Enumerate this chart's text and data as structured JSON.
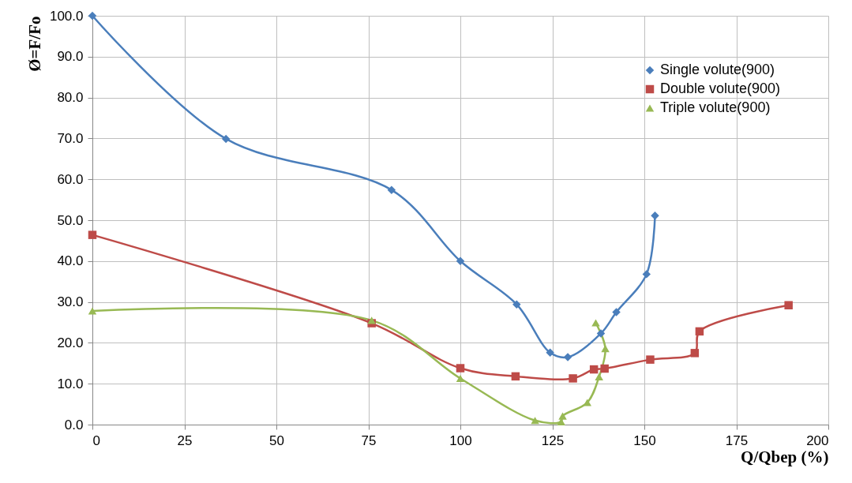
{
  "chart_data": {
    "type": "line",
    "xlabel": "Q/Qbep (%)",
    "ylabel": "Ø=F/Fo",
    "xlim": [
      0,
      200
    ],
    "xticks": [
      0,
      25,
      50,
      75,
      100,
      125,
      150,
      175,
      200
    ],
    "ylim": [
      0,
      100
    ],
    "yticks": [
      {
        "value": 0,
        "label": "0.0"
      },
      {
        "value": 10,
        "label": "10.0"
      },
      {
        "value": 20,
        "label": "20.0"
      },
      {
        "value": 30,
        "label": "30.0"
      },
      {
        "value": 40,
        "label": "40.0"
      },
      {
        "value": 50,
        "label": "50.0"
      },
      {
        "value": 60,
        "label": "60.0"
      },
      {
        "value": 70,
        "label": "70.0"
      },
      {
        "value": 80,
        "label": "80.0"
      },
      {
        "value": 90,
        "label": "90.0"
      },
      {
        "value": 100,
        "label": "100.0"
      }
    ],
    "grid": true,
    "legend": "top right",
    "line_style": "solid",
    "series": [
      {
        "name": "Single volute(900)",
        "color": "#4a7ebb",
        "marker": "diamond",
        "x": [
          0,
          36.3,
          81.3,
          100,
          115.3,
          124.4,
          129.2,
          138.2,
          142.4,
          150.6,
          152.9
        ],
        "values": [
          100,
          69.9,
          57.4,
          40,
          29.4,
          17.6,
          16.5,
          22.3,
          27.5,
          36.8,
          51.1
        ]
      },
      {
        "name": "Double volute(900)",
        "color": "#be4b48",
        "marker": "square",
        "x": [
          0,
          75.9,
          100,
          115,
          130.6,
          136.3,
          139.2,
          151.6,
          163.7,
          165,
          189.2
        ],
        "values": [
          46.4,
          24.8,
          13.8,
          11.8,
          11.3,
          13.5,
          13.7,
          15.9,
          17.5,
          22.8,
          29.2
        ]
      },
      {
        "name": "Triple volute(900)",
        "color": "#98b954",
        "marker": "triangle",
        "x": [
          0,
          75.9,
          100,
          120.3,
          127.4,
          127.8,
          134.5,
          137.7,
          139.4,
          136.8
        ],
        "values": [
          27.8,
          25.5,
          11.3,
          1.0,
          0.7,
          2.1,
          5.4,
          11.7,
          18.6,
          24.9
        ]
      }
    ]
  }
}
